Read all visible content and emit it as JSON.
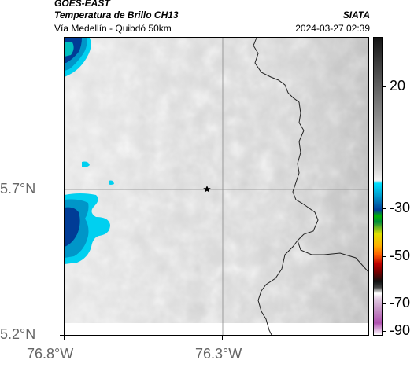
{
  "header": {
    "satellite": "GOES-EAST",
    "product": "Temperatura de Brillo CH13",
    "route": "Vía Medellín - Quibdó 50km",
    "agency": "SIATA",
    "timestamp": "2024-03-27 02:39"
  },
  "axes": {
    "y_ticks": [
      "5.7°N",
      "5.2°N"
    ],
    "x_ticks": [
      "76.8°W",
      "76.3°W"
    ]
  },
  "colorbar": {
    "ticks": [
      "20",
      "-30",
      "-50",
      "-70",
      "-90"
    ],
    "colors": [
      "#151515",
      "#4a4a4a",
      "#8c8c8c",
      "#c8c8c8",
      "#e8e8e8",
      "#00e0ff",
      "#00a0d0",
      "#003c96",
      "#00b400",
      "#e0e000",
      "#ff6000",
      "#a00000",
      "#101010",
      "#ffffff",
      "#c89ac8",
      "#b050b0"
    ]
  },
  "map": {
    "marker_icon": "star-icon",
    "cloud_colors": {
      "deep": "#003c96",
      "mid": "#0096c8",
      "light": "#00d0f0"
    }
  }
}
